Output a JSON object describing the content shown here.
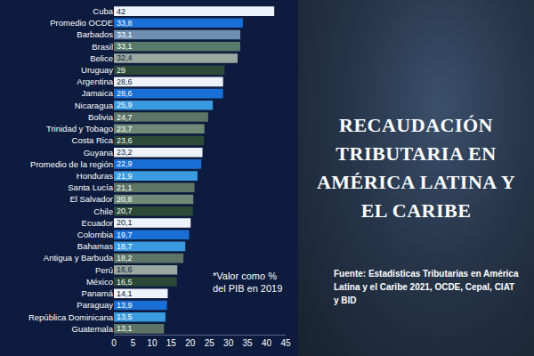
{
  "chart_data": {
    "type": "bar",
    "orientation": "horizontal",
    "title": "RECAUDACIÓN TRIBUTARIA EN AMÉRICA LATINA Y EL CARIBE",
    "source": "Fuente: Estadísticas Tributarias en América Latina y el Caribe 2021, OCDE, Cepal, CIAT y BID",
    "annotation": "*Valor como % del PIB en 2019",
    "categories": [
      "Cuba",
      "Promedio OCDE",
      "Barbados",
      "Brasil",
      "Belice",
      "Uruguay",
      "Argentina",
      "Jamaica",
      "Nicaragua",
      "Bolivia",
      "Trinidad y Tobago",
      "Costa Rica",
      "Guyana",
      "Promedio de la región",
      "Honduras",
      "Santa Lucía",
      "El Salvador",
      "Chile",
      "Ecuador",
      "Colombia",
      "Bahamas",
      "Antigua y Barbuda",
      "Perú",
      "México",
      "Panamá",
      "Paraguay",
      "República Dominicana",
      "Guatemala"
    ],
    "values": [
      42,
      33.8,
      33.1,
      33.1,
      32.4,
      29,
      28.6,
      28.6,
      25.9,
      24.7,
      23.7,
      23.6,
      23.2,
      22.9,
      21.9,
      21.1,
      20.8,
      20.7,
      20.1,
      19.7,
      18.7,
      18.2,
      16.6,
      16.5,
      14.1,
      13.9,
      13.5,
      13.1
    ],
    "value_labels": [
      "42",
      "33,8",
      "33,1",
      "33,1",
      "32,4",
      "29",
      "28,6",
      "28,6",
      "25,9",
      "24,7",
      "23,7",
      "23,6",
      "23,2",
      "22,9",
      "21,9",
      "21,1",
      "20,8",
      "20,7",
      "20,1",
      "19,7",
      "18,7",
      "18,2",
      "16,6",
      "16,5",
      "14,1",
      "13,9",
      "13,5",
      "13,1"
    ],
    "colors": [
      "#eef3fb",
      "#1a6fd6",
      "#6e8fb0",
      "#587a6a",
      "#9aa9a0",
      "#2d4a38",
      "#eef3fb",
      "#1a6fd6",
      "#3a9be0",
      "#5c7566",
      "#6e8a76",
      "#2d4a38",
      "#eef3fb",
      "#1a6fd6",
      "#3a9be0",
      "#5c7566",
      "#6e8a76",
      "#2d4a38",
      "#eef3fb",
      "#1a6fd6",
      "#3a9be0",
      "#5c7566",
      "#9aa9a0",
      "#2d4a38",
      "#eef3fb",
      "#1a6fd6",
      "#3a9be0",
      "#5c7566"
    ],
    "xlim": [
      0,
      45
    ],
    "xticks": [
      0,
      5,
      10,
      15,
      20,
      25,
      30,
      35,
      40,
      45
    ],
    "data_labels": true,
    "grid": false
  }
}
